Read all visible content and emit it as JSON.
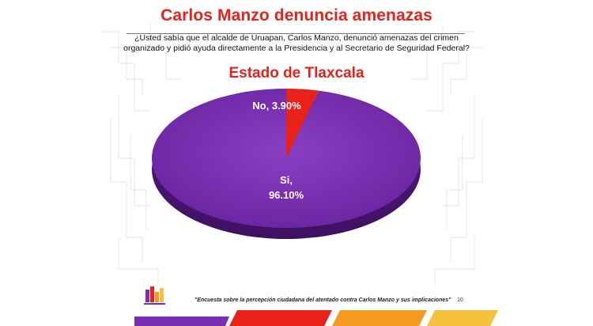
{
  "slide": {
    "title": "Carlos Manzo denuncia amenazas",
    "question": "¿Usted sabía que el alcalde de Uruapan, Carlos Manzo, denunció amenazas del crimen organizado y pidió ayuda directamente a la Presidencia y al Secretario de Seguridad Federal?",
    "state": "Estado de Tlaxcala",
    "footer_note": "\"Encuesta sobre la percepción ciudadana del atentado contra Carlos Manzo y sus implicaciones\"",
    "page_number": "10"
  },
  "colors": {
    "title": "#e8211b",
    "si": "#7a2fb0",
    "no": "#e8211b",
    "footer_red": "#e8211b",
    "footer_orange": "#f39a1f",
    "footer_yellow": "#f6c23e"
  },
  "chart_data": {
    "type": "pie",
    "title": "",
    "labels": [
      "No",
      "Si"
    ],
    "values": [
      3.9,
      96.1
    ],
    "display_labels": [
      "No, 3.90%",
      "Si,",
      "96.10%"
    ],
    "colors": [
      "#e8211b",
      "#7a2fb0"
    ]
  }
}
